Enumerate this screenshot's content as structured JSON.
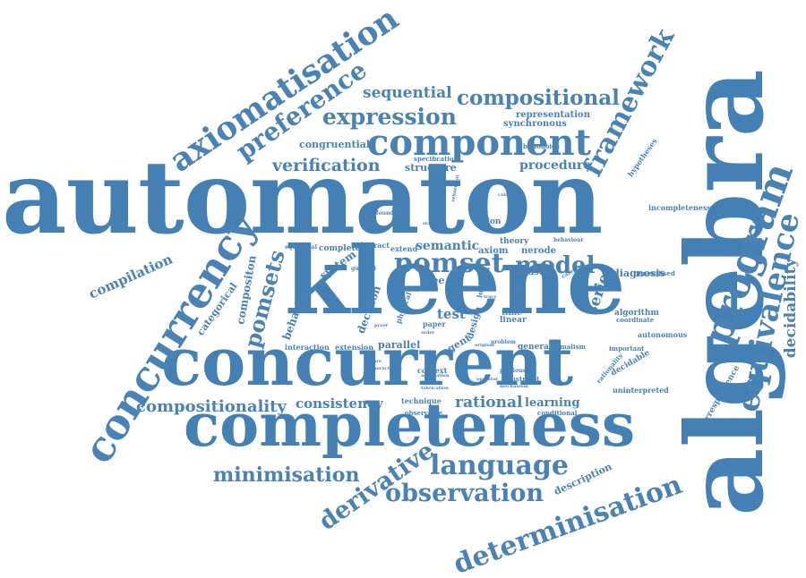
{
  "title": "",
  "colors": {
    "word": "#4a82b4",
    "background": "#ffffff"
  },
  "words": [
    "automaton",
    "algebra",
    "kleene",
    "concurrent",
    "completeness",
    "concurrency",
    "component",
    "program",
    "equivalence",
    "framework",
    "axiomatisation",
    "preference",
    "expression",
    "compositional",
    "sequential",
    "verification",
    "pomset",
    "model",
    "language",
    "observation",
    "derivative",
    "determinisation",
    "minimisation",
    "compositionality",
    "pomsets",
    "compilation",
    "decidability",
    "consistency",
    "rational",
    "learning",
    "procedure",
    "semantic",
    "series",
    "test",
    "decision",
    "system",
    "behavior",
    "categorical",
    "compositon",
    "incompleteness",
    "diagnosis",
    "algorithm",
    "autonomous",
    "representation",
    "synchronous",
    "structure",
    "congruential",
    "interaction",
    "extension",
    "parallel",
    "agent",
    "context",
    "constraint",
    "technique",
    "general",
    "formalism",
    "description",
    "correspondence",
    "uninterpreted",
    "decidable",
    "rationality",
    "important",
    "reason",
    "axiom",
    "theory",
    "nerode",
    "abstract",
    "complete",
    "equational",
    "extend",
    "free",
    "time",
    "linear",
    "paper",
    "design",
    "logic",
    "bimonoids",
    "specification",
    "hypotheses",
    "coordinate",
    "generalised",
    "behaviour",
    "category",
    "foundation",
    "observable",
    "conditional",
    "physical",
    "guarded",
    "action",
    "problem",
    "original",
    "previous",
    "application",
    "characterise",
    "fabrication",
    "mechanism",
    "stable",
    "refinement",
    "calculus",
    "operator",
    "graph",
    "hoare",
    "trace",
    "order",
    "proof",
    "class"
  ]
}
